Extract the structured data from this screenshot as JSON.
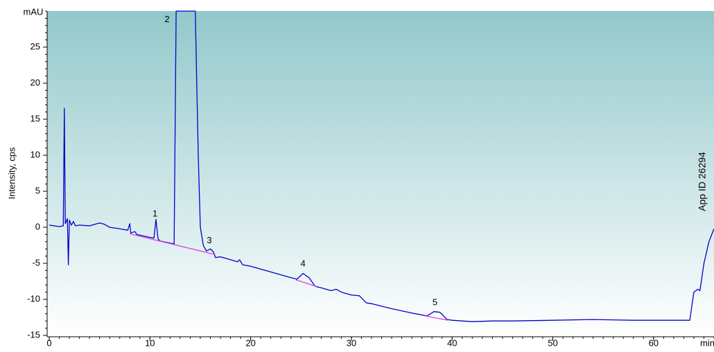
{
  "chart_data": {
    "type": "line",
    "y_unit": "mAU",
    "x_unit": "min",
    "ylabel": "Intensity, cps",
    "annotation": "App ID 26294",
    "xlim": [
      0,
      66
    ],
    "ylim": [
      -15,
      30
    ],
    "xticks": [
      0,
      10,
      20,
      30,
      40,
      50,
      60
    ],
    "yticks": [
      -15,
      -10,
      -5,
      0,
      5,
      10,
      15,
      20,
      25
    ],
    "series": [
      {
        "color": "#0000cc",
        "x": [
          0,
          1,
          1.4,
          1.5,
          1.6,
          1.8,
          1.9,
          2.0,
          2.2,
          2.4,
          2.6,
          3,
          4,
          5,
          5.5,
          6,
          7,
          7.8,
          8.0,
          8.1,
          8.5,
          8.7,
          9,
          10,
          10.4,
          10.6,
          10.8,
          11,
          12,
          12.4,
          12.6,
          14.5,
          14.8,
          15,
          15.3,
          15.6,
          16,
          16.3,
          16.5,
          17,
          18,
          18.7,
          18.9,
          19.2,
          20,
          22,
          24,
          24.6,
          25.2,
          25.8,
          26.4,
          27,
          28,
          28.5,
          29,
          30,
          30.8,
          31,
          31.5,
          32,
          34,
          36,
          37.5,
          38.2,
          38.8,
          39.5,
          40,
          42,
          44,
          46,
          50,
          54,
          58,
          62,
          63.6,
          64,
          64.4,
          64.6,
          65,
          65.5,
          66
        ],
        "values": [
          0.3,
          0.1,
          0.2,
          16.5,
          0.5,
          1.2,
          -5.2,
          1.0,
          0.3,
          0.8,
          0.2,
          0.3,
          0.2,
          0.6,
          0.4,
          0.0,
          -0.2,
          -0.4,
          0.5,
          -0.8,
          -0.6,
          -1.0,
          -1.1,
          -1.4,
          -1.5,
          1.1,
          -1.6,
          -1.9,
          -2.2,
          -2.3,
          30,
          30,
          10,
          0,
          -2.5,
          -3.3,
          -3.0,
          -3.4,
          -4.2,
          -4.1,
          -4.5,
          -4.8,
          -4.5,
          -5.2,
          -5.4,
          -6.2,
          -7.0,
          -7.2,
          -6.4,
          -7.0,
          -8.2,
          -8.4,
          -8.8,
          -8.6,
          -9.0,
          -9.4,
          -9.5,
          -9.8,
          -10.5,
          -10.6,
          -11.3,
          -11.9,
          -12.3,
          -11.7,
          -11.8,
          -12.8,
          -12.9,
          -13.1,
          -13.0,
          -13.0,
          -12.9,
          -12.8,
          -12.9,
          -12.9,
          -12.9,
          -9.0,
          -8.6,
          -8.8,
          -5,
          -2,
          -0.2
        ]
      },
      {
        "color": "#e040e0",
        "x": [
          8,
          16.5,
          null,
          24.5,
          26.5,
          null,
          37.3,
          39.6
        ],
        "values": [
          -0.9,
          -3.8,
          null,
          -7.3,
          -8.2,
          null,
          -12.3,
          -12.9
        ]
      }
    ],
    "peaks": [
      {
        "label": "1",
        "x": 10.5,
        "y": 1.8
      },
      {
        "label": "2",
        "x": 11.7,
        "y": 28.8
      },
      {
        "label": "3",
        "x": 15.9,
        "y": -1.9
      },
      {
        "label": "4",
        "x": 25.2,
        "y": -5.1
      },
      {
        "label": "5",
        "x": 38.3,
        "y": -10.5
      }
    ]
  }
}
